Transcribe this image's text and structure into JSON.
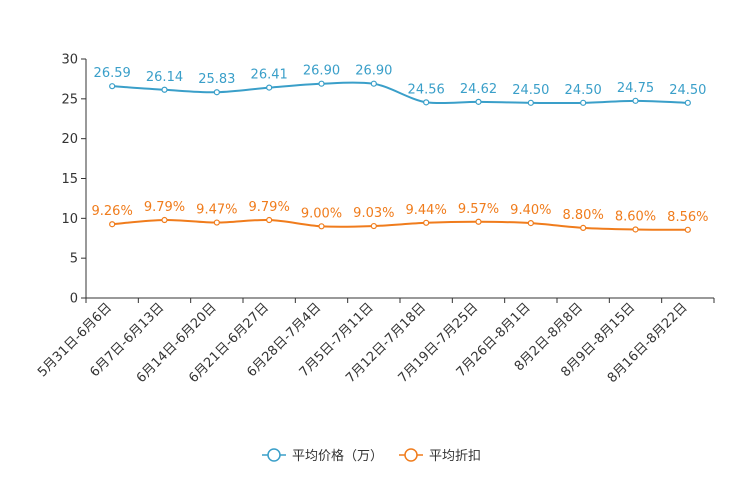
{
  "chart_data": {
    "type": "line",
    "title": "",
    "xlabel": "",
    "ylabel": "",
    "ylim": [
      0,
      30
    ],
    "yticks": [
      0,
      5,
      10,
      15,
      20,
      25,
      30
    ],
    "categories": [
      "5月31日-6月6日",
      "6月7日-6月13日",
      "6月14日-6月20日",
      "6月21日-6月27日",
      "6月28日-7月4日",
      "7月5日-7月11日",
      "7月12日-7月18日",
      "7月19日-7月25日",
      "7月26日-8月1日",
      "8月2日-8月8日",
      "8月9日-8月15日",
      "8月16日-8月22日"
    ],
    "series": [
      {
        "name": "平均价格（万）",
        "color": "#3a9fc9",
        "values": [
          26.59,
          26.14,
          25.83,
          26.41,
          26.9,
          26.9,
          24.56,
          24.62,
          24.5,
          24.5,
          24.75,
          24.5
        ],
        "labels": [
          "26.59",
          "26.14",
          "25.83",
          "26.41",
          "26.90",
          "26.90",
          "24.56",
          "24.62",
          "24.50",
          "24.50",
          "24.75",
          "24.50"
        ]
      },
      {
        "name": "平均折扣",
        "color": "#f07c1c",
        "values": [
          9.26,
          9.79,
          9.47,
          9.79,
          9.0,
          9.03,
          9.44,
          9.57,
          9.4,
          8.8,
          8.6,
          8.56
        ],
        "labels": [
          "9.26%",
          "9.79%",
          "9.47%",
          "9.79%",
          "9.00%",
          "9.03%",
          "9.44%",
          "9.57%",
          "9.40%",
          "8.80%",
          "8.60%",
          "8.56%"
        ]
      }
    ],
    "legend_position": "bottom-center",
    "grid": false
  }
}
